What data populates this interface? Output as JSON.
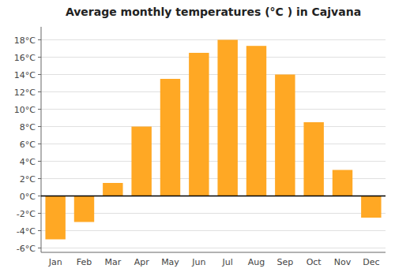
{
  "chart_data": {
    "type": "bar",
    "title": "Average monthly temperatures (°C ) in Cajvana",
    "categories": [
      "Jan",
      "Feb",
      "Mar",
      "Apr",
      "May",
      "Jun",
      "Jul",
      "Aug",
      "Sep",
      "Oct",
      "Nov",
      "Dec"
    ],
    "values": [
      -5,
      -3,
      1.5,
      8,
      13.5,
      16.5,
      18,
      17.3,
      14,
      8.5,
      3,
      -2.5
    ],
    "color": "#FFA824",
    "ylim": [
      -6.5,
      19.5
    ],
    "yticks": [
      {
        "value": -6,
        "label": "-6°C"
      },
      {
        "value": -4,
        "label": "-4°C"
      },
      {
        "value": -2,
        "label": "-2°C"
      },
      {
        "value": 0,
        "label": "0°C"
      },
      {
        "value": 2,
        "label": "2°C"
      },
      {
        "value": 4,
        "label": "4°C"
      },
      {
        "value": 6,
        "label": "6°C"
      },
      {
        "value": 8,
        "label": "8°C"
      },
      {
        "value": 10,
        "label": "10°C"
      },
      {
        "value": 12,
        "label": "12°C"
      },
      {
        "value": 14,
        "label": "14°C"
      },
      {
        "value": 16,
        "label": "16°C"
      },
      {
        "value": 18,
        "label": "18°C"
      }
    ],
    "grid": true
  }
}
